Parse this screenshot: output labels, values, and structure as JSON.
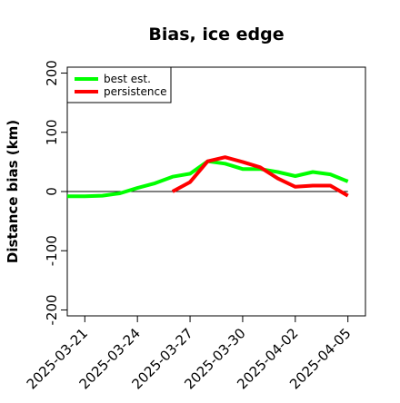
{
  "chart_data": {
    "type": "line",
    "title": "Bias, ice edge",
    "xlabel": "",
    "ylabel": "Distance bias (km)",
    "xlim": [
      "2025-03-20",
      "2025-04-06"
    ],
    "ylim": [
      -210,
      210
    ],
    "x_ticks": [
      "2025-03-21",
      "2025-03-24",
      "2025-03-27",
      "2025-03-30",
      "2025-04-02",
      "2025-04-05"
    ],
    "y_ticks": [
      -200,
      -100,
      0,
      100,
      200
    ],
    "grid": false,
    "legend_position": "top-left",
    "reference_line": 0,
    "series": [
      {
        "name": "best est.",
        "color": "#00ff00",
        "points": [
          {
            "x": "2025-03-20",
            "y": -8
          },
          {
            "x": "2025-03-21",
            "y": -8
          },
          {
            "x": "2025-03-22",
            "y": -7
          },
          {
            "x": "2025-03-23",
            "y": -3
          },
          {
            "x": "2025-03-24",
            "y": 6
          },
          {
            "x": "2025-03-25",
            "y": 14
          },
          {
            "x": "2025-03-26",
            "y": 25
          },
          {
            "x": "2025-03-27",
            "y": 30
          },
          {
            "x": "2025-03-28",
            "y": 51
          },
          {
            "x": "2025-03-29",
            "y": 47
          },
          {
            "x": "2025-03-30",
            "y": 38
          },
          {
            "x": "2025-03-31",
            "y": 38
          },
          {
            "x": "2025-04-01",
            "y": 33
          },
          {
            "x": "2025-04-02",
            "y": 26
          },
          {
            "x": "2025-04-03",
            "y": 33
          },
          {
            "x": "2025-04-04",
            "y": 29
          },
          {
            "x": "2025-04-05",
            "y": 17
          }
        ]
      },
      {
        "name": "persistence",
        "color": "#ff0000",
        "points": [
          {
            "x": "2025-03-26",
            "y": 0
          },
          {
            "x": "2025-03-27",
            "y": 16
          },
          {
            "x": "2025-03-28",
            "y": 51
          },
          {
            "x": "2025-03-29",
            "y": 58
          },
          {
            "x": "2025-03-30",
            "y": 50
          },
          {
            "x": "2025-03-31",
            "y": 41
          },
          {
            "x": "2025-04-01",
            "y": 22
          },
          {
            "x": "2025-04-02",
            "y": 8
          },
          {
            "x": "2025-04-03",
            "y": 10
          },
          {
            "x": "2025-04-04",
            "y": 10
          },
          {
            "x": "2025-04-05",
            "y": -7
          }
        ]
      }
    ]
  }
}
